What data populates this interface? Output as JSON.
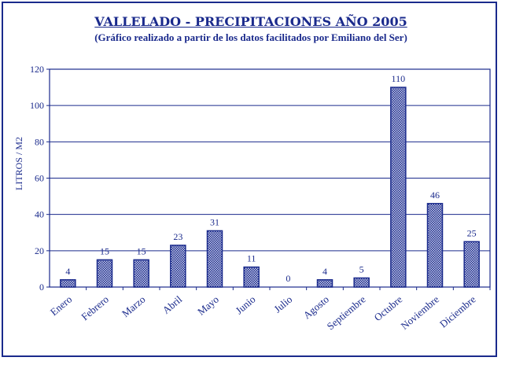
{
  "chart_data": {
    "type": "bar",
    "title": "VALLELADO - PRECIPITACIONES AÑO 2005",
    "subtitle": "(Gráfico realizado a partir de los datos facilitados por Emiliano del Ser)",
    "xlabel": "",
    "ylabel": "LITROS / M2",
    "ylim": [
      0,
      120
    ],
    "yticks": [
      0,
      20,
      40,
      60,
      80,
      100,
      120
    ],
    "grid": true,
    "categories": [
      "Enero",
      "Febrero",
      "Marzo",
      "Abril",
      "Mayo",
      "Junio",
      "Julio",
      "Agosto",
      "Septiembre",
      "Octubre",
      "Noviembre",
      "Diciembre"
    ],
    "values": [
      4,
      15,
      15,
      23,
      31,
      11,
      0,
      4,
      5,
      110,
      46,
      25
    ],
    "bar_color": "#1a2a8c",
    "text_color": "#1a2a8c"
  }
}
